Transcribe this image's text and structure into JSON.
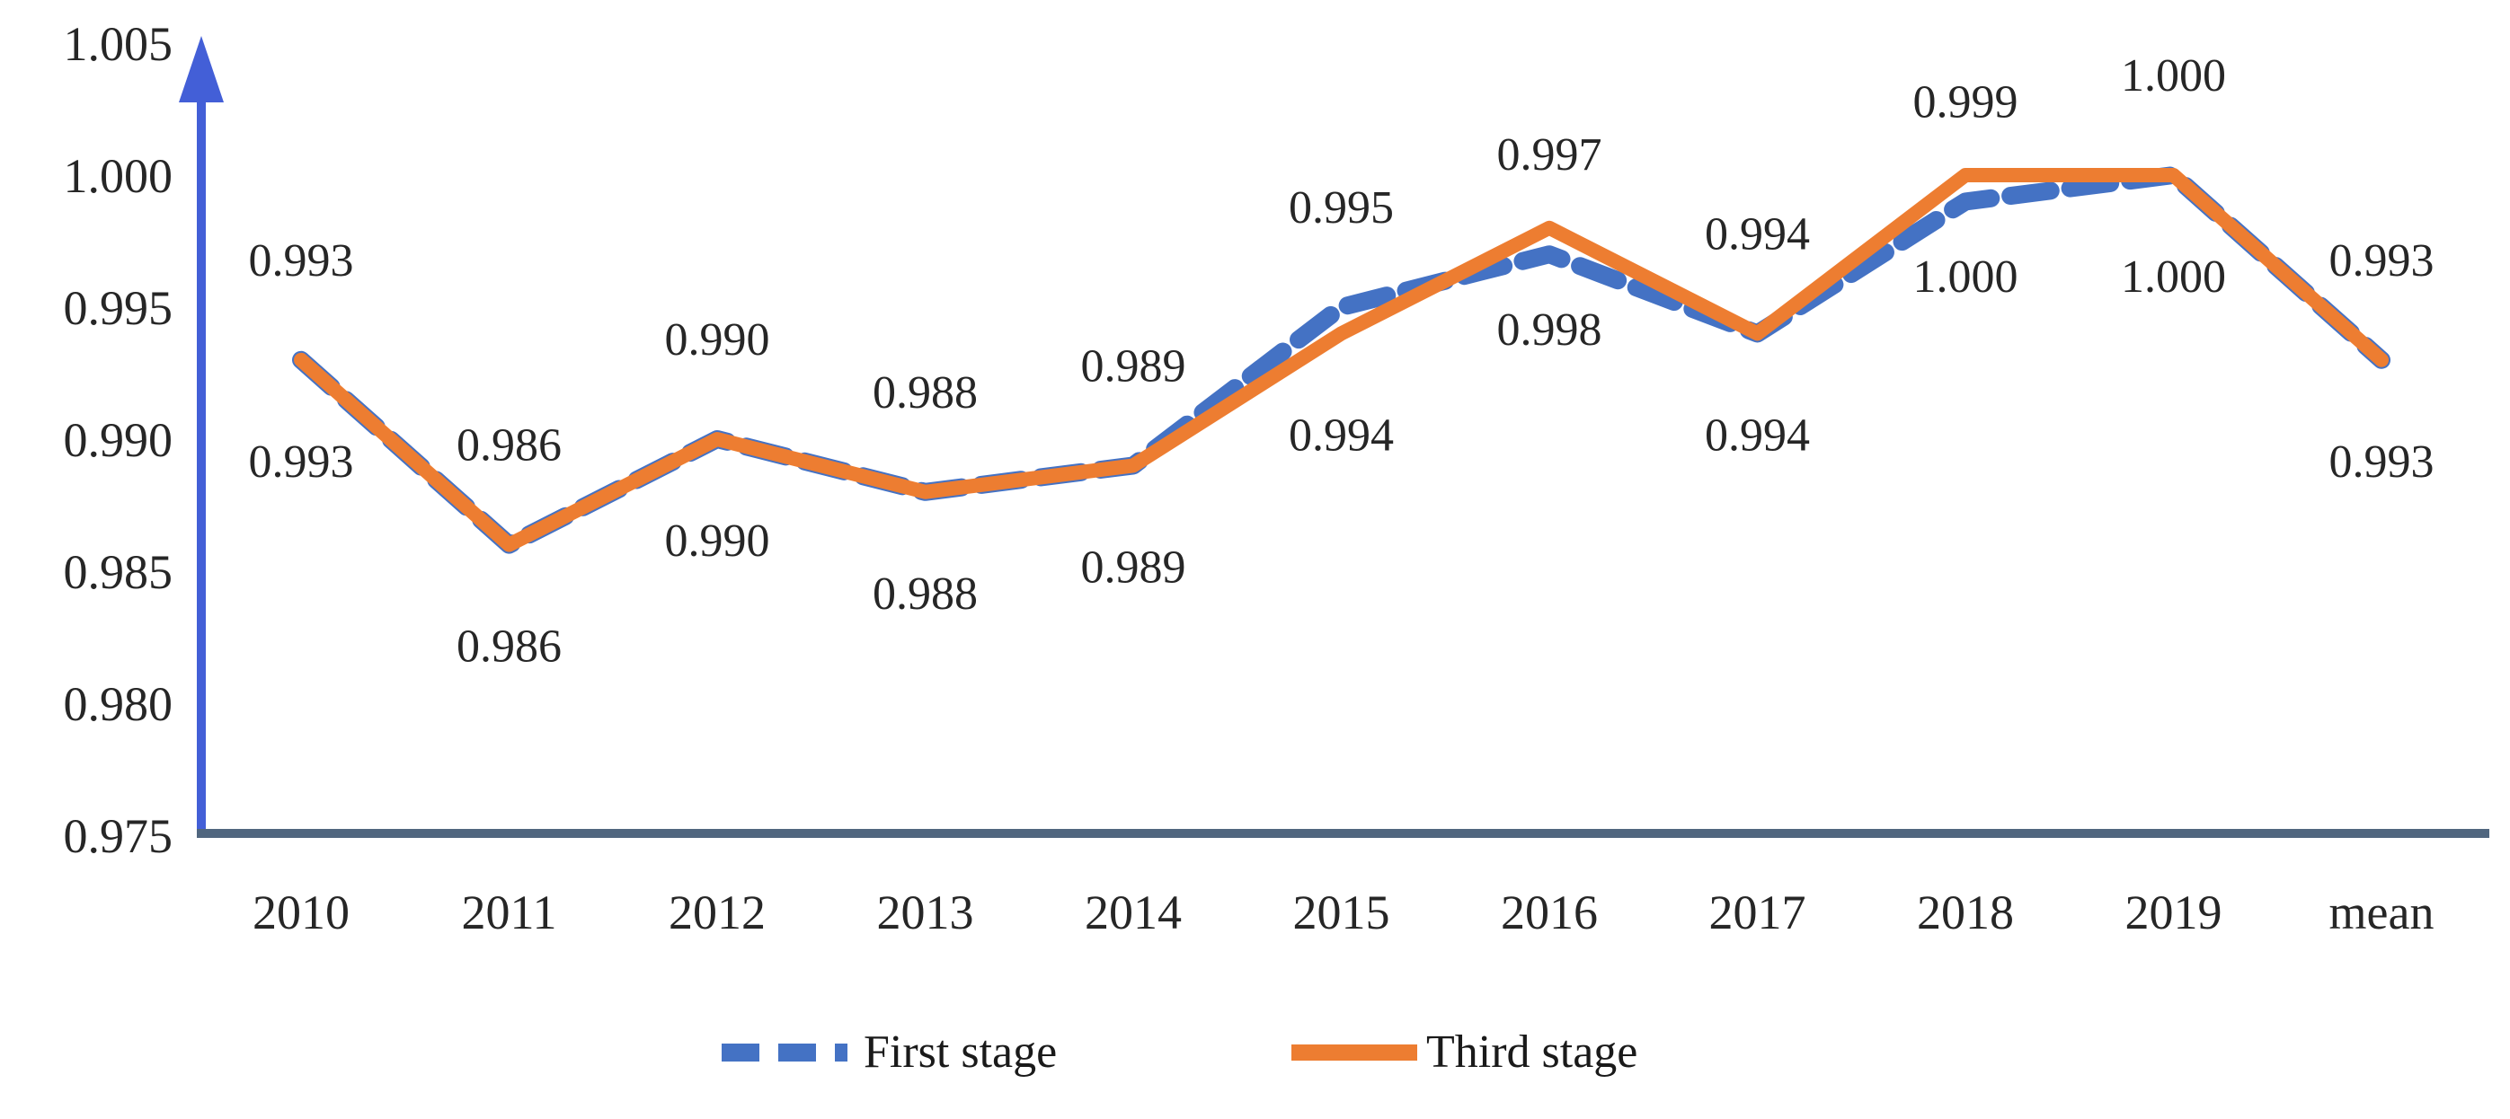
{
  "chart_data": {
    "type": "line",
    "title": "",
    "xlabel": "",
    "ylabel": "",
    "categories": [
      "2010",
      "2011",
      "2012",
      "2013",
      "2014",
      "2015",
      "2016",
      "2017",
      "2018",
      "2019",
      "mean"
    ],
    "series": [
      {
        "name": "First stage",
        "color": "#4472C4",
        "line_style": "dashed",
        "label_position": "above",
        "values": [
          0.993,
          0.986,
          0.99,
          0.988,
          0.989,
          0.995,
          0.997,
          0.994,
          0.999,
          1.0,
          0.993
        ]
      },
      {
        "name": "Third stage",
        "color": "#ED7D31",
        "line_style": "solid",
        "label_position": "below",
        "values": [
          0.993,
          0.986,
          0.99,
          0.988,
          0.989,
          0.994,
          0.998,
          0.994,
          1.0,
          1.0,
          0.993
        ]
      }
    ],
    "ylim": [
      0.975,
      1.005
    ],
    "yticks": [
      "0.975",
      "0.980",
      "0.985",
      "0.990",
      "0.995",
      "1.000",
      "1.005"
    ],
    "grid": false,
    "legend_position": "bottom",
    "value_label_decimals": 3,
    "colors": {
      "y_axis": "#435FD7",
      "x_axis": "#50667F",
      "tick_text": "#262626",
      "data_label_text": "#262626"
    }
  }
}
